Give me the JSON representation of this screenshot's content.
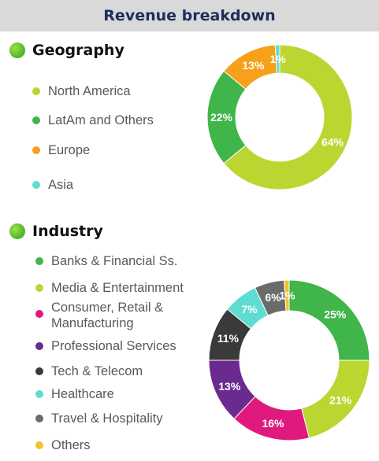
{
  "header": {
    "title": "Revenue breakdown"
  },
  "geography": {
    "heading": "Geography",
    "legend": [
      {
        "label": "North America",
        "color": "#bcd631"
      },
      {
        "label": "LatAm and Others",
        "color": "#3fb54a"
      },
      {
        "label": "Europe",
        "color": "#f7a01a"
      },
      {
        "label": "Asia",
        "color": "#5fdcd2"
      }
    ]
  },
  "industry": {
    "heading": "Industry",
    "legend": [
      {
        "label": "Banks & Financial Ss.",
        "color": "#3fb54a"
      },
      {
        "label": "Media & Entertainment",
        "color": "#bcd631"
      },
      {
        "label": "Consumer, Retail & Manufacturing",
        "color": "#e0197f"
      },
      {
        "label": "Professional Services",
        "color": "#6b2a8f"
      },
      {
        "label": "Tech & Telecom",
        "color": "#3a3a3a"
      },
      {
        "label": "Healthcare",
        "color": "#5fdcd2"
      },
      {
        "label": "Travel & Hospitality",
        "color": "#6b6b6b"
      },
      {
        "label": "Others",
        "color": "#f2c12e"
      }
    ]
  },
  "chart_data": [
    {
      "type": "pie",
      "categories": [
        "North America",
        "LatAm and Others",
        "Europe",
        "Asia"
      ],
      "values": [
        64,
        22,
        13,
        1
      ],
      "labels": [
        "64%",
        "22%",
        "13%",
        "1%"
      ],
      "colors": [
        "#bcd631",
        "#3fb54a",
        "#f7a01a",
        "#5fdcd2"
      ]
    },
    {
      "type": "pie",
      "categories": [
        "Banks & Financial Ss.",
        "Media & Entertainment",
        "Consumer, Retail & Manufacturing",
        "Professional Services",
        "Tech & Telecom",
        "Healthcare",
        "Travel & Hospitality",
        "Others"
      ],
      "values": [
        25,
        21,
        16,
        13,
        11,
        7,
        6,
        1
      ],
      "labels": [
        "25%",
        "21%",
        "16%",
        "13%",
        "11%",
        "7%",
        "6%",
        "1%"
      ],
      "colors": [
        "#3fb54a",
        "#bcd631",
        "#e0197f",
        "#6b2a8f",
        "#3a3a3a",
        "#5fdcd2",
        "#6b6b6b",
        "#f2c12e"
      ]
    }
  ]
}
